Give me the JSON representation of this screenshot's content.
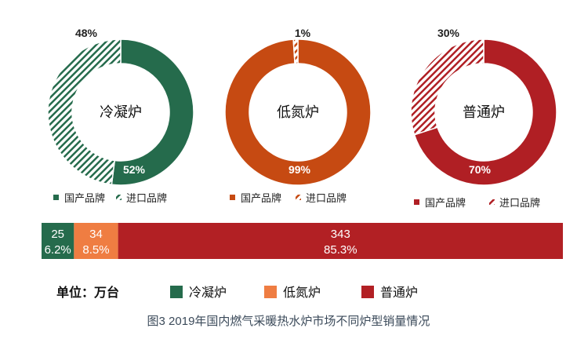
{
  "chart_data": [
    {
      "type": "pie",
      "variant": "donut",
      "center_label": "冷凝炉",
      "slices": [
        {
          "name": "国产品牌",
          "value": 52,
          "label": "52%",
          "pattern": "solid"
        },
        {
          "name": "进口品牌",
          "value": 48,
          "label": "48%",
          "pattern": "hatched"
        }
      ],
      "color": "#256b4c",
      "legend": [
        "国产品牌",
        "进口品牌"
      ],
      "legend_placement": "bottom"
    },
    {
      "type": "pie",
      "variant": "donut",
      "center_label": "低氮炉",
      "slices": [
        {
          "name": "国产品牌",
          "value": 99,
          "label": "99%",
          "pattern": "solid"
        },
        {
          "name": "进口品牌",
          "value": 1,
          "label": "1%",
          "pattern": "hatched"
        }
      ],
      "color": "#c64a12",
      "legend": [
        "国产品牌",
        "进口品牌"
      ],
      "legend_placement": "bottom"
    },
    {
      "type": "pie",
      "variant": "donut",
      "center_label": "普通炉",
      "slices": [
        {
          "name": "国产品牌",
          "value": 70,
          "label": "70%",
          "pattern": "solid"
        },
        {
          "name": "进口品牌",
          "value": 30,
          "label": "30%",
          "pattern": "hatched"
        }
      ],
      "color": "#b01f24",
      "legend": [
        "国产品牌",
        "进口品牌"
      ],
      "legend_placement": "bottom"
    },
    {
      "type": "bar",
      "variant": "stacked-100-horizontal",
      "unit_label": "单位：万台",
      "series": [
        {
          "name": "冷凝炉",
          "value": 25,
          "percent_label": "6.2%",
          "color": "#256b4c"
        },
        {
          "name": "低氮炉",
          "value": 34,
          "percent_label": "8.5%",
          "color": "#ef7d42"
        },
        {
          "name": "普通炉",
          "value": 343,
          "percent_label": "85.3%",
          "color": "#b22024"
        }
      ],
      "legend_placement": "bottom"
    }
  ],
  "caption": "图3 2019年国内燃气采暖热水炉市场不同炉型销量情况"
}
